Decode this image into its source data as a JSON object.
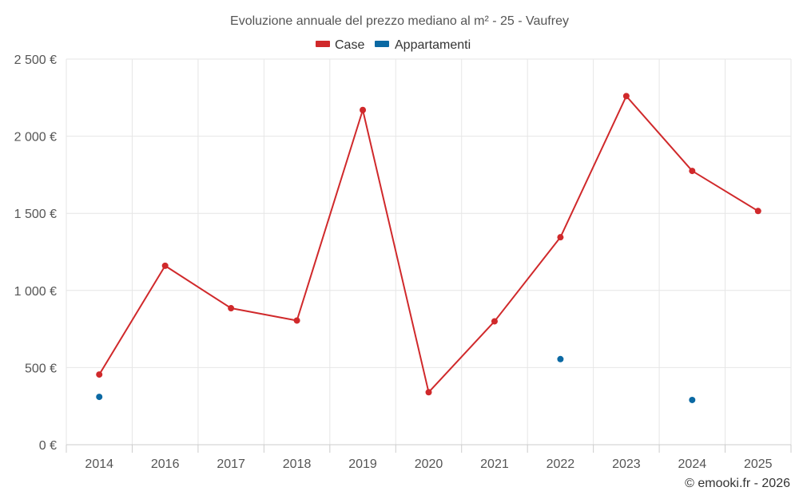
{
  "chart_data": {
    "type": "line",
    "title": "Evoluzione annuale del prezzo mediano al m² - 25 - Vaufrey",
    "categories": [
      "2014",
      "2016",
      "2017",
      "2018",
      "2019",
      "2020",
      "2021",
      "2022",
      "2023",
      "2024",
      "2025"
    ],
    "ylim": [
      0,
      2500
    ],
    "yticks": [
      0,
      500,
      1000,
      1500,
      2000,
      2500
    ],
    "ytick_labels": [
      "0 €",
      "500 €",
      "1 000 €",
      "1 500 €",
      "2 000 €",
      "2 500 €"
    ],
    "xlabel": "",
    "ylabel": "",
    "legend_position": "top-center",
    "grid": true,
    "series": [
      {
        "name": "Case",
        "color": "#d0292b",
        "style": "line",
        "values": [
          455,
          1160,
          885,
          805,
          2170,
          340,
          800,
          1345,
          2260,
          1775,
          1515
        ]
      },
      {
        "name": "Appartamenti",
        "color": "#0b69a3",
        "style": "markers",
        "values": [
          310,
          null,
          null,
          null,
          null,
          null,
          null,
          555,
          null,
          290,
          null
        ]
      }
    ],
    "credits": "© emooki.fr - 2026"
  }
}
